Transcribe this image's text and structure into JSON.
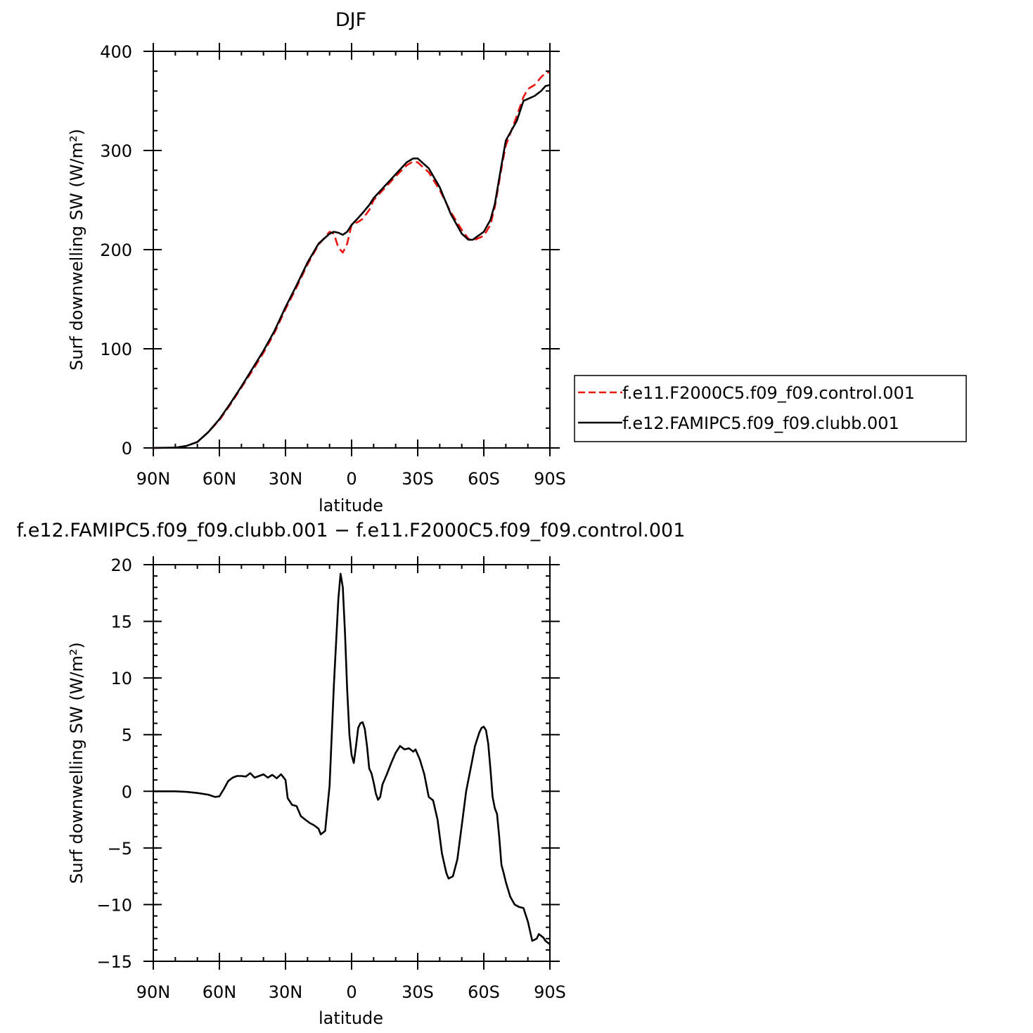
{
  "chart_data": [
    {
      "type": "line",
      "title": "DJF",
      "xlabel": "latitude",
      "ylabel": "Surf downwelling SW (W/m²)",
      "xlim": [
        -90,
        90
      ],
      "ylim": [
        0,
        400
      ],
      "x_ticks": [
        -90,
        -60,
        -30,
        0,
        30,
        60,
        90
      ],
      "x_tick_labels": [
        "90N",
        "60N",
        "30N",
        "0",
        "30S",
        "60S",
        "90S"
      ],
      "y_ticks": [
        0,
        100,
        200,
        300,
        400
      ],
      "y_tick_labels": [
        "0",
        "100",
        "200",
        "300",
        "400"
      ],
      "legend": {
        "position": "right",
        "entries": [
          "f.e11.F2000C5.f09_f09.control.001",
          "f.e12.FAMIPC5.f09_f09.clubb.001"
        ]
      },
      "series": [
        {
          "name": "f.e11.F2000C5.f09_f09.control.001",
          "color": "#e8140f",
          "style": "dashed",
          "points": [
            [
              -90,
              0
            ],
            [
              -80,
              0.3
            ],
            [
              -75,
              2
            ],
            [
              -70,
              6
            ],
            [
              -65,
              16
            ],
            [
              -60,
              28
            ],
            [
              -55,
              44
            ],
            [
              -50,
              61
            ],
            [
              -45,
              78
            ],
            [
              -40,
              96
            ],
            [
              -35,
              116
            ],
            [
              -30,
              140
            ],
            [
              -25,
              162
            ],
            [
              -20,
              185
            ],
            [
              -15,
              205
            ],
            [
              -10,
              218
            ],
            [
              -8,
              216
            ],
            [
              -6,
              202
            ],
            [
              -4,
              197
            ],
            [
              -2,
              206
            ],
            [
              0,
              225
            ],
            [
              3,
              228
            ],
            [
              5,
              231
            ],
            [
              8,
              240
            ],
            [
              10,
              250
            ],
            [
              15,
              262
            ],
            [
              20,
              274
            ],
            [
              25,
              285
            ],
            [
              28,
              289
            ],
            [
              30,
              288
            ],
            [
              35,
              278
            ],
            [
              40,
              260
            ],
            [
              45,
              238
            ],
            [
              50,
              220
            ],
            [
              53,
              211
            ],
            [
              55,
              209
            ],
            [
              60,
              214
            ],
            [
              63,
              225
            ],
            [
              65,
              243
            ],
            [
              68,
              282
            ],
            [
              70,
              305
            ],
            [
              75,
              335
            ],
            [
              78,
              354
            ],
            [
              80,
              362
            ],
            [
              83,
              366
            ],
            [
              86,
              374
            ],
            [
              88,
              378
            ],
            [
              90,
              379
            ]
          ]
        },
        {
          "name": "f.e12.FAMIPC5.f09_f09.clubb.001",
          "color": "#000000",
          "style": "solid",
          "points": [
            [
              -90,
              0
            ],
            [
              -80,
              0.3
            ],
            [
              -75,
              2
            ],
            [
              -70,
              6
            ],
            [
              -65,
              16
            ],
            [
              -60,
              29
            ],
            [
              -55,
              45
            ],
            [
              -50,
              62
            ],
            [
              -45,
              80
            ],
            [
              -40,
              98
            ],
            [
              -35,
              118
            ],
            [
              -30,
              142
            ],
            [
              -25,
              164
            ],
            [
              -20,
              187
            ],
            [
              -15,
              206
            ],
            [
              -10,
              216
            ],
            [
              -8,
              218
            ],
            [
              -6,
              217
            ],
            [
              -4,
              215
            ],
            [
              -2,
              218
            ],
            [
              0,
              225
            ],
            [
              3,
              232
            ],
            [
              5,
              237
            ],
            [
              8,
              245
            ],
            [
              10,
              252
            ],
            [
              15,
              264
            ],
            [
              20,
              276
            ],
            [
              25,
              288
            ],
            [
              28,
              292
            ],
            [
              30,
              292
            ],
            [
              35,
              282
            ],
            [
              40,
              263
            ],
            [
              45,
              236
            ],
            [
              50,
              216
            ],
            [
              53,
              210
            ],
            [
              55,
              210
            ],
            [
              60,
              218
            ],
            [
              63,
              230
            ],
            [
              65,
              246
            ],
            [
              68,
              285
            ],
            [
              70,
              310
            ],
            [
              75,
              330
            ],
            [
              78,
              350
            ],
            [
              80,
              352
            ],
            [
              83,
              355
            ],
            [
              86,
              360
            ],
            [
              88,
              365
            ],
            [
              90,
              366
            ]
          ]
        }
      ]
    },
    {
      "type": "line",
      "title": "f.e12.FAMIPC5.f09_f09.clubb.001 − f.e11.F2000C5.f09_f09.control.001",
      "xlabel": "latitude",
      "ylabel": "Surf downwelling SW (W/m²)",
      "xlim": [
        -90,
        90
      ],
      "ylim": [
        -15,
        20
      ],
      "x_ticks": [
        -90,
        -60,
        -30,
        0,
        30,
        60,
        90
      ],
      "x_tick_labels": [
        "90N",
        "60N",
        "30N",
        "0",
        "30S",
        "60S",
        "90S"
      ],
      "y_ticks": [
        -15,
        -10,
        -5,
        0,
        5,
        10,
        15,
        20
      ],
      "y_tick_labels": [
        "−15",
        "−10",
        "−5",
        "0",
        "5",
        "10",
        "15",
        "20"
      ],
      "series": [
        {
          "color": "#000000",
          "style": "solid",
          "points": [
            [
              -90,
              0
            ],
            [
              -80,
              0
            ],
            [
              -75,
              -0.05
            ],
            [
              -70,
              -0.15
            ],
            [
              -65,
              -0.3
            ],
            [
              -62,
              -0.5
            ],
            [
              -60,
              -0.45
            ],
            [
              -58,
              0.2
            ],
            [
              -56,
              0.9
            ],
            [
              -54,
              1.2
            ],
            [
              -52,
              1.35
            ],
            [
              -50,
              1.35
            ],
            [
              -48,
              1.3
            ],
            [
              -46,
              1.6
            ],
            [
              -44,
              1.2
            ],
            [
              -42,
              1.35
            ],
            [
              -40,
              1.5
            ],
            [
              -38,
              1.2
            ],
            [
              -36,
              1.45
            ],
            [
              -34,
              1.15
            ],
            [
              -32,
              1.5
            ],
            [
              -30,
              1.0
            ],
            [
              -29,
              -0.6
            ],
            [
              -27,
              -1.2
            ],
            [
              -25,
              -1.3
            ],
            [
              -23,
              -2.2
            ],
            [
              -21,
              -2.5
            ],
            [
              -19,
              -2.8
            ],
            [
              -17,
              -3.0
            ],
            [
              -15,
              -3.3
            ],
            [
              -14,
              -3.8
            ],
            [
              -12,
              -3.5
            ],
            [
              -10,
              0.5
            ],
            [
              -8,
              9.5
            ],
            [
              -6,
              17
            ],
            [
              -5,
              19.2
            ],
            [
              -4,
              18
            ],
            [
              -3,
              14
            ],
            [
              -2,
              9
            ],
            [
              -1,
              5
            ],
            [
              0,
              3.2
            ],
            [
              1,
              2.5
            ],
            [
              2,
              4
            ],
            [
              3,
              5.6
            ],
            [
              4,
              6.0
            ],
            [
              5,
              6.1
            ],
            [
              6,
              5.5
            ],
            [
              7,
              4
            ],
            [
              8,
              2
            ],
            [
              9,
              1.6
            ],
            [
              10,
              0.8
            ],
            [
              11,
              -0.2
            ],
            [
              12,
              -0.75
            ],
            [
              13,
              -0.5
            ],
            [
              14,
              0.6
            ],
            [
              16,
              1.5
            ],
            [
              18,
              2.5
            ],
            [
              20,
              3.4
            ],
            [
              22,
              4.0
            ],
            [
              24,
              3.7
            ],
            [
              26,
              3.8
            ],
            [
              28,
              3.5
            ],
            [
              29,
              3.7
            ],
            [
              31,
              2.8
            ],
            [
              33,
              1.5
            ],
            [
              35,
              -0.5
            ],
            [
              37,
              -0.8
            ],
            [
              39,
              -2.5
            ],
            [
              41,
              -5.5
            ],
            [
              43,
              -7.2
            ],
            [
              44,
              -7.7
            ],
            [
              46,
              -7.5
            ],
            [
              48,
              -6
            ],
            [
              50,
              -3
            ],
            [
              52,
              0
            ],
            [
              54,
              2
            ],
            [
              56,
              4
            ],
            [
              58,
              5.2
            ],
            [
              59,
              5.6
            ],
            [
              60,
              5.7
            ],
            [
              61,
              5.4
            ],
            [
              62,
              4.2
            ],
            [
              63,
              2
            ],
            [
              64,
              -0.5
            ],
            [
              65,
              -1.5
            ],
            [
              66,
              -2
            ],
            [
              67,
              -4
            ],
            [
              68,
              -6.5
            ],
            [
              69,
              -7.2
            ],
            [
              70,
              -8
            ],
            [
              72,
              -9.3
            ],
            [
              74,
              -10
            ],
            [
              76,
              -10.2
            ],
            [
              78,
              -10.3
            ],
            [
              80,
              -11.5
            ],
            [
              82,
              -13.2
            ],
            [
              84,
              -13
            ],
            [
              85,
              -12.6
            ],
            [
              87,
              -12.9
            ],
            [
              88,
              -13.2
            ],
            [
              90,
              -13.5
            ]
          ]
        }
      ]
    }
  ]
}
